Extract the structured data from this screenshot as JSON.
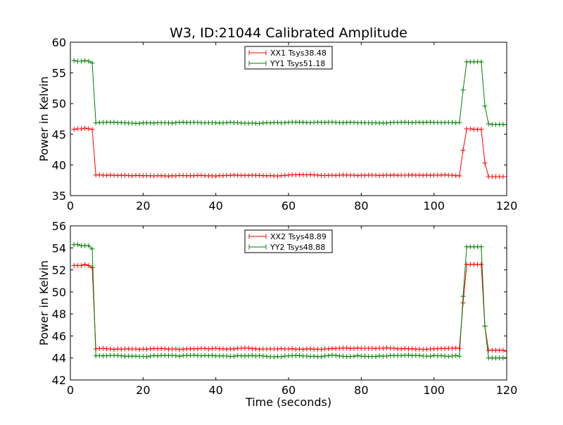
{
  "figure_title": "W3, ID:21044 Calibrated Amplitude",
  "chart_data": [
    {
      "type": "line",
      "title": "W3, ID:21044 Calibrated Amplitude",
      "xlabel": "",
      "ylabel": "Power in Kelvin",
      "xlim": [
        0,
        120
      ],
      "ylim": [
        35,
        60
      ],
      "xticks": [
        0,
        20,
        40,
        60,
        80,
        100,
        120
      ],
      "yticks": [
        35,
        40,
        45,
        50,
        55,
        60
      ],
      "grid": false,
      "legend_position": "top-center",
      "series": [
        {
          "name": "XX1 Tsys38.48",
          "color": "#ff0000",
          "segments": [
            {
              "x_start": 1,
              "x_end": 6,
              "values": [
                45.8,
                45.9,
                45.9,
                46.0,
                45.9,
                45.8
              ]
            },
            {
              "x_start": 7,
              "x_end": 107,
              "level": 38.3,
              "jitter": 0.12
            },
            {
              "x_start": 108,
              "x_end": 120,
              "values": [
                42.4,
                45.9,
                45.9,
                45.8,
                45.8,
                45.8,
                40.3,
                38.1,
                38.1,
                38.1,
                38.1,
                38.1,
                38.1
              ]
            }
          ]
        },
        {
          "name": "YY1 Tsys51.18",
          "color": "#008000",
          "segments": [
            {
              "x_start": 1,
              "x_end": 6,
              "values": [
                57.0,
                56.9,
                56.9,
                57.0,
                56.9,
                56.6
              ]
            },
            {
              "x_start": 7,
              "x_end": 107,
              "level": 46.9,
              "jitter": 0.12
            },
            {
              "x_start": 108,
              "x_end": 120,
              "values": [
                52.2,
                56.8,
                56.8,
                56.8,
                56.8,
                56.8,
                49.6,
                46.7,
                46.6,
                46.6,
                46.6,
                46.6,
                46.6
              ]
            }
          ]
        }
      ]
    },
    {
      "type": "line",
      "title": "",
      "xlabel": "Time (seconds)",
      "ylabel": "Power in Kelvin",
      "xlim": [
        0,
        120
      ],
      "ylim": [
        42,
        56
      ],
      "xticks": [
        0,
        20,
        40,
        60,
        80,
        100,
        120
      ],
      "yticks": [
        42,
        44,
        46,
        48,
        50,
        52,
        54,
        56
      ],
      "grid": false,
      "legend_position": "top-center",
      "series": [
        {
          "name": "XX2 Tsys48.89",
          "color": "#ff0000",
          "segments": [
            {
              "x_start": 1,
              "x_end": 6,
              "values": [
                52.4,
                52.4,
                52.4,
                52.5,
                52.4,
                52.2
              ]
            },
            {
              "x_start": 7,
              "x_end": 107,
              "level": 44.85,
              "jitter": 0.1
            },
            {
              "x_start": 108,
              "x_end": 120,
              "values": [
                49.0,
                52.5,
                52.5,
                52.5,
                52.5,
                52.5,
                46.9,
                44.7,
                44.7,
                44.7,
                44.7,
                44.7,
                44.6
              ]
            }
          ]
        },
        {
          "name": "YY2 Tsys48.88",
          "color": "#008000",
          "segments": [
            {
              "x_start": 1,
              "x_end": 6,
              "values": [
                54.3,
                54.3,
                54.2,
                54.2,
                54.2,
                53.9
              ]
            },
            {
              "x_start": 7,
              "x_end": 107,
              "level": 44.2,
              "jitter": 0.1
            },
            {
              "x_start": 108,
              "x_end": 120,
              "values": [
                49.6,
                54.1,
                54.1,
                54.1,
                54.1,
                54.1,
                46.9,
                44.0,
                44.0,
                44.0,
                44.0,
                44.0,
                44.0
              ]
            }
          ]
        }
      ]
    }
  ]
}
